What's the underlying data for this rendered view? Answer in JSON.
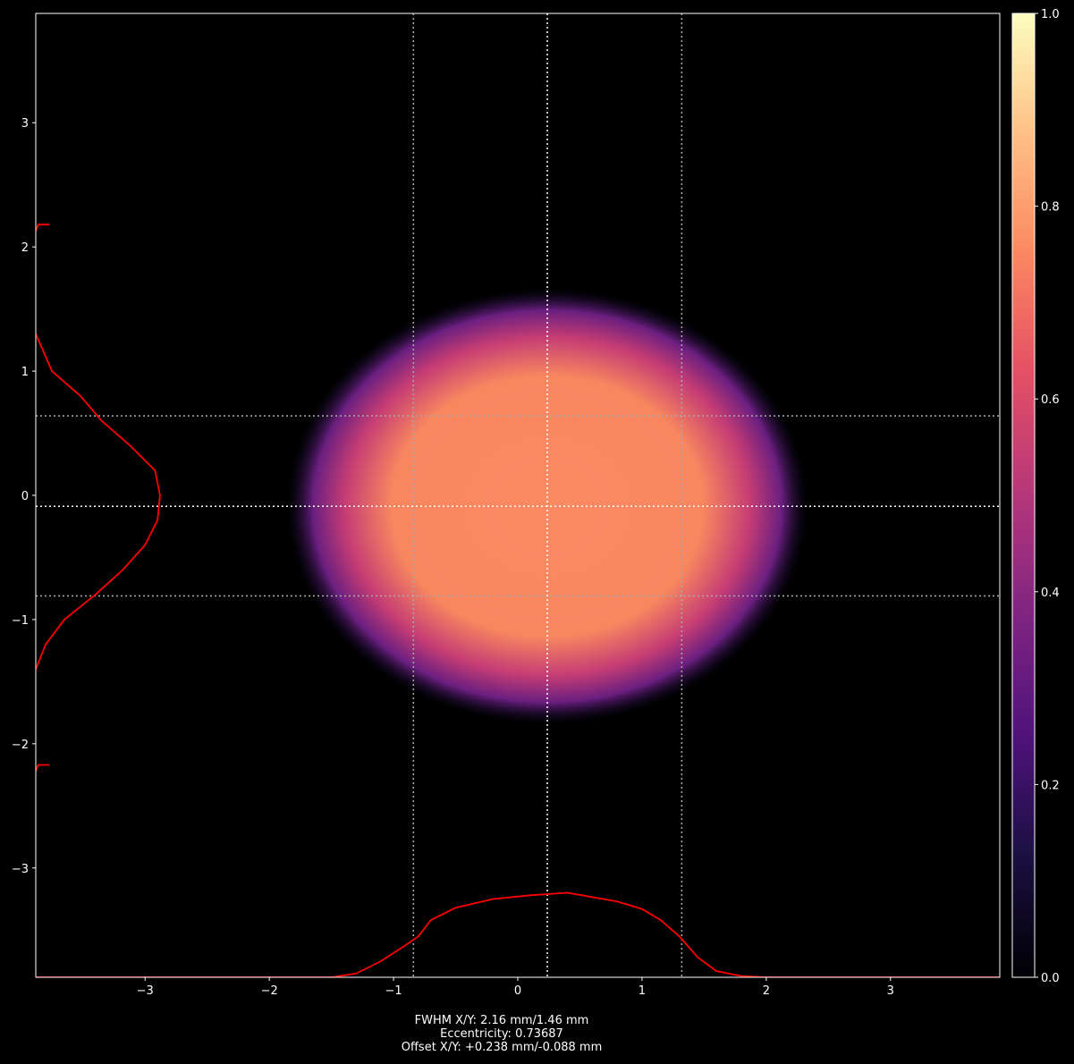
{
  "chart_data": {
    "type": "heatmap",
    "colormap": "magma",
    "xlim": [
      -3.88,
      3.88
    ],
    "ylim": [
      -3.88,
      3.88
    ],
    "xticks": [
      "−3",
      "−2",
      "−1",
      "0",
      "1",
      "2",
      "3"
    ],
    "xtick_values": [
      -3,
      -2,
      -1,
      0,
      1,
      2,
      3
    ],
    "yticks": [
      "−3",
      "−2",
      "−1",
      "0",
      "1",
      "2",
      "3"
    ],
    "ytick_values": [
      -3,
      -2,
      -1,
      0,
      1,
      2,
      3
    ],
    "colorbar": {
      "range": [
        0,
        1
      ],
      "ticks": [
        "0.0",
        "0.2",
        "0.4",
        "0.6",
        "0.8",
        "1.0"
      ],
      "tick_values": [
        0,
        0.2,
        0.4,
        0.6,
        0.8,
        1.0
      ]
    },
    "beam": {
      "center": [
        0.238,
        -0.088
      ],
      "fwhm": [
        2.16,
        1.46
      ]
    },
    "center_lines": {
      "x": 0.238,
      "y": -0.088
    },
    "fwhm_lines": {
      "x": [
        -0.84,
        1.32
      ],
      "y": [
        0.64,
        -0.81
      ]
    },
    "profile_x": [
      [
        -3.88,
        -3.88
      ],
      [
        -1.5,
        -3.88
      ],
      [
        -1.3,
        -3.85
      ],
      [
        -1.1,
        -3.75
      ],
      [
        -0.9,
        -3.62
      ],
      [
        -0.8,
        -3.55
      ],
      [
        -0.7,
        -3.42
      ],
      [
        -0.5,
        -3.32
      ],
      [
        -0.2,
        -3.25
      ],
      [
        0.1,
        -3.22
      ],
      [
        0.4,
        -3.2
      ],
      [
        0.8,
        -3.27
      ],
      [
        1.0,
        -3.33
      ],
      [
        1.15,
        -3.42
      ],
      [
        1.3,
        -3.55
      ],
      [
        1.45,
        -3.72
      ],
      [
        1.6,
        -3.83
      ],
      [
        1.8,
        -3.87
      ],
      [
        2.0,
        -3.88
      ],
      [
        3.88,
        -3.88
      ]
    ],
    "profile_y": [
      [
        -3.88,
        1.3
      ],
      [
        -3.75,
        1.0
      ],
      [
        -3.52,
        0.8
      ],
      [
        -3.35,
        0.6
      ],
      [
        -3.12,
        0.4
      ],
      [
        -2.92,
        0.2
      ],
      [
        -2.88,
        0.0
      ],
      [
        -2.9,
        -0.2
      ],
      [
        -3.0,
        -0.4
      ],
      [
        -3.18,
        -0.6
      ],
      [
        -3.4,
        -0.8
      ],
      [
        -3.65,
        -1.0
      ],
      [
        -3.8,
        -1.2
      ],
      [
        -3.88,
        -1.4
      ]
    ],
    "profile_y_ends": [
      2.18,
      -2.17
    ],
    "profile_color": "#ff0000",
    "annotation": [
      "FWHM X/Y: 2.16 mm/1.46 mm",
      "Eccentricity: 0.73687",
      "Offset X/Y: +0.238 mm/-0.088 mm"
    ]
  }
}
